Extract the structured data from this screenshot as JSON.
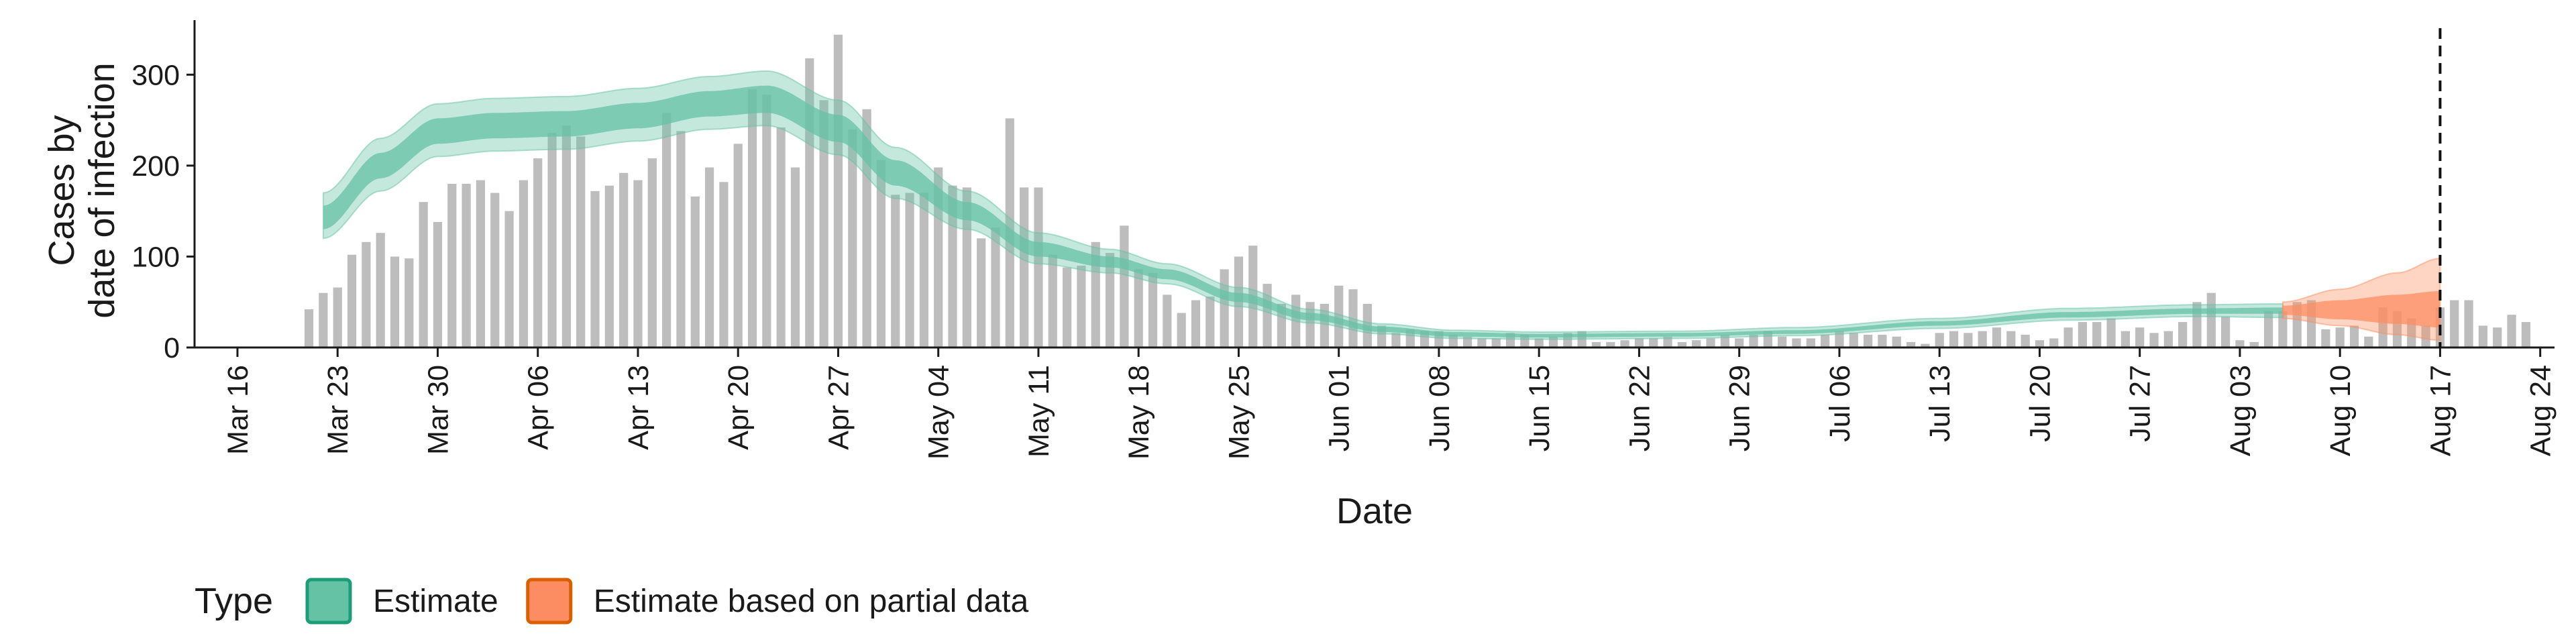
{
  "chart_data": {
    "type": "bar",
    "xlabel": "Date",
    "ylabel_lines": [
      "Cases by",
      "date of infection"
    ],
    "ylim": [
      0,
      360
    ],
    "yticks": [
      0,
      100,
      200,
      300
    ],
    "xlim": [
      "2020-03-13",
      "2020-08-25"
    ],
    "xticks": [
      {
        "date": "2020-03-16",
        "label": "Mar 16"
      },
      {
        "date": "2020-03-23",
        "label": "Mar 23"
      },
      {
        "date": "2020-03-30",
        "label": "Mar 30"
      },
      {
        "date": "2020-04-06",
        "label": "Apr 06"
      },
      {
        "date": "2020-04-13",
        "label": "Apr 13"
      },
      {
        "date": "2020-04-20",
        "label": "Apr 20"
      },
      {
        "date": "2020-04-27",
        "label": "Apr 27"
      },
      {
        "date": "2020-05-04",
        "label": "May 04"
      },
      {
        "date": "2020-05-11",
        "label": "May 11"
      },
      {
        "date": "2020-05-18",
        "label": "May 18"
      },
      {
        "date": "2020-05-25",
        "label": "May 25"
      },
      {
        "date": "2020-06-01",
        "label": "Jun 01"
      },
      {
        "date": "2020-06-08",
        "label": "Jun 08"
      },
      {
        "date": "2020-06-15",
        "label": "Jun 15"
      },
      {
        "date": "2020-06-22",
        "label": "Jun 22"
      },
      {
        "date": "2020-06-29",
        "label": "Jun 29"
      },
      {
        "date": "2020-07-06",
        "label": "Jul 06"
      },
      {
        "date": "2020-07-13",
        "label": "Jul 13"
      },
      {
        "date": "2020-07-20",
        "label": "Jul 20"
      },
      {
        "date": "2020-07-27",
        "label": "Jul 27"
      },
      {
        "date": "2020-08-03",
        "label": "Aug 03"
      },
      {
        "date": "2020-08-10",
        "label": "Aug 10"
      },
      {
        "date": "2020-08-17",
        "label": "Aug 17"
      },
      {
        "date": "2020-08-24",
        "label": "Aug 24"
      }
    ],
    "bars": {
      "start_date": "2020-03-21",
      "color": "#bdbdbd",
      "values": [
        42,
        60,
        66,
        102,
        116,
        126,
        100,
        98,
        160,
        138,
        180,
        180,
        184,
        170,
        150,
        184,
        208,
        236,
        244,
        232,
        172,
        178,
        192,
        184,
        208,
        258,
        238,
        166,
        198,
        182,
        224,
        284,
        278,
        242,
        198,
        318,
        272,
        344,
        240,
        262,
        206,
        168,
        170,
        170,
        198,
        178,
        176,
        120,
        132,
        252,
        176,
        176,
        102,
        88,
        90,
        116,
        104,
        134,
        86,
        82,
        58,
        38,
        52,
        56,
        86,
        100,
        112,
        70,
        48,
        58,
        50,
        48,
        68,
        64,
        48,
        24,
        16,
        20,
        18,
        18,
        14,
        12,
        10,
        10,
        16,
        14,
        10,
        12,
        16,
        18,
        6,
        6,
        8,
        10,
        10,
        12,
        6,
        8,
        10,
        14,
        10,
        14,
        18,
        12,
        10,
        10,
        14,
        18,
        16,
        14,
        14,
        12,
        6,
        4,
        16,
        18,
        16,
        18,
        22,
        18,
        14,
        8,
        10,
        22,
        28,
        28,
        32,
        18,
        22,
        16,
        18,
        28,
        50,
        60,
        34,
        8,
        6,
        40,
        40,
        50,
        52,
        20,
        22,
        24,
        12,
        44,
        40,
        32,
        24,
        44,
        52,
        52,
        24,
        22,
        36,
        28
      ]
    },
    "estimate": {
      "start_date": "2020-03-22",
      "end_date": "2020-08-06",
      "color": "#66c2a5",
      "knots": [
        {
          "date": "2020-03-22",
          "median": 142,
          "inner": [
            130,
            156
          ],
          "outer": [
            120,
            170
          ]
        },
        {
          "date": "2020-03-26",
          "median": 200,
          "inner": [
            186,
            214
          ],
          "outer": [
            172,
            230
          ]
        },
        {
          "date": "2020-03-30",
          "median": 238,
          "inner": [
            224,
            252
          ],
          "outer": [
            210,
            268
          ]
        },
        {
          "date": "2020-04-03",
          "median": 244,
          "inner": [
            230,
            258
          ],
          "outer": [
            216,
            274
          ]
        },
        {
          "date": "2020-04-08",
          "median": 246,
          "inner": [
            232,
            260
          ],
          "outer": [
            218,
            276
          ]
        },
        {
          "date": "2020-04-13",
          "median": 255,
          "inner": [
            241,
            269
          ],
          "outer": [
            227,
            285
          ]
        },
        {
          "date": "2020-04-18",
          "median": 268,
          "inner": [
            254,
            282
          ],
          "outer": [
            240,
            298
          ]
        },
        {
          "date": "2020-04-22",
          "median": 272,
          "inner": [
            258,
            288
          ],
          "outer": [
            244,
            304
          ]
        },
        {
          "date": "2020-04-27",
          "median": 240,
          "inner": [
            226,
            256
          ],
          "outer": [
            212,
            272
          ]
        },
        {
          "date": "2020-05-01",
          "median": 192,
          "inner": [
            178,
            206
          ],
          "outer": [
            164,
            220
          ]
        },
        {
          "date": "2020-05-06",
          "median": 150,
          "inner": [
            140,
            160
          ],
          "outer": [
            130,
            172
          ]
        },
        {
          "date": "2020-05-11",
          "median": 108,
          "inner": [
            100,
            116
          ],
          "outer": [
            92,
            126
          ]
        },
        {
          "date": "2020-05-16",
          "median": 94,
          "inner": [
            88,
            100
          ],
          "outer": [
            82,
            108
          ]
        },
        {
          "date": "2020-05-20",
          "median": 80,
          "inner": [
            75,
            86
          ],
          "outer": [
            70,
            92
          ]
        },
        {
          "date": "2020-05-25",
          "median": 55,
          "inner": [
            50,
            60
          ],
          "outer": [
            45,
            66
          ]
        },
        {
          "date": "2020-05-30",
          "median": 34,
          "inner": [
            30,
            38
          ],
          "outer": [
            27,
            42
          ]
        },
        {
          "date": "2020-06-04",
          "median": 20,
          "inner": [
            17,
            23
          ],
          "outer": [
            15,
            26
          ]
        },
        {
          "date": "2020-06-09",
          "median": 14,
          "inner": [
            12,
            17
          ],
          "outer": [
            10,
            19
          ]
        },
        {
          "date": "2020-06-15",
          "median": 13,
          "inner": [
            11,
            15
          ],
          "outer": [
            9,
            17
          ]
        },
        {
          "date": "2020-06-25",
          "median": 14,
          "inner": [
            12,
            16
          ],
          "outer": [
            10,
            18
          ]
        },
        {
          "date": "2020-07-03",
          "median": 17,
          "inner": [
            15,
            19
          ],
          "outer": [
            13,
            22
          ]
        },
        {
          "date": "2020-07-13",
          "median": 26,
          "inner": [
            24,
            29
          ],
          "outer": [
            21,
            32
          ]
        },
        {
          "date": "2020-07-22",
          "median": 36,
          "inner": [
            33,
            39
          ],
          "outer": [
            30,
            43
          ]
        },
        {
          "date": "2020-07-31",
          "median": 40,
          "inner": [
            37,
            43
          ],
          "outer": [
            34,
            47
          ]
        },
        {
          "date": "2020-08-06",
          "median": 40,
          "inner": [
            37,
            44
          ],
          "outer": [
            33,
            48
          ]
        }
      ]
    },
    "partial_estimate": {
      "start_date": "2020-08-06",
      "end_date": "2020-08-17",
      "color": "#fc8d62",
      "knots": [
        {
          "date": "2020-08-06",
          "median": 40,
          "inner": [
            36,
            46
          ],
          "outer": [
            32,
            50
          ]
        },
        {
          "date": "2020-08-10",
          "median": 40,
          "inner": [
            31,
            52
          ],
          "outer": [
            24,
            64
          ]
        },
        {
          "date": "2020-08-14",
          "median": 40,
          "inner": [
            26,
            58
          ],
          "outer": [
            14,
            82
          ]
        },
        {
          "date": "2020-08-17",
          "median": 40,
          "inner": [
            22,
            62
          ],
          "outer": [
            8,
            98
          ]
        }
      ]
    },
    "vline_date": "2020-08-17",
    "grid": false,
    "legend": {
      "placement": "bottom-left",
      "title": "Type",
      "items": [
        {
          "label": "Estimate",
          "color": "#66c2a5",
          "border": "#1b9e77"
        },
        {
          "label": "Estimate based on partial data",
          "color": "#fc8d62",
          "border": "#d95f02"
        }
      ]
    }
  }
}
